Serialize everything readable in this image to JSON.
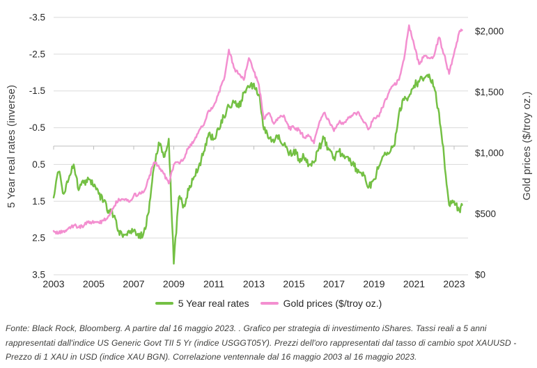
{
  "footer": {
    "text": "Fonte: Black Rock, Bloomberg. A partire dal 16 maggio 2023. . Grafico per strategia di investimento iShares. Tassi reali a 5 anni rappresentati dall'indice US Generic Govt TII 5 Yr (indice USGGT05Y). Prezzi dell'oro rappresentati dal tasso di cambio spot XAUUSD - Prezzo di 1 XAU in USD (indice XAU BGN). Correlazione ventennale dal 16 maggio 2003 al 16 maggio 2023."
  },
  "chart_data": {
    "type": "line",
    "title": "",
    "grid": "horizontal",
    "legend_position": "bottom",
    "colors": {
      "rates_line": "#74C044",
      "gold_line": "#F38FD0",
      "gridline": "#dadada",
      "zero_axis": "#bdbdbd",
      "tick_text": "#262626"
    },
    "left_axis": {
      "title": "5 Year real rates (inverse)",
      "range": [
        -3.5,
        3.5
      ],
      "inverted": true,
      "ticks": [
        -3.5,
        -2.5,
        -1.5,
        -0.5,
        0.5,
        1.5,
        2.5,
        3.5
      ],
      "tick_labels": [
        "-3.5",
        "-2.5",
        "-1.5",
        "-0.5",
        "0.5",
        "1.5",
        "2.5",
        "3.5"
      ]
    },
    "right_axis": {
      "title": "Gold prices ($/troy oz.)",
      "range": [
        0,
        2000
      ],
      "ticks": [
        0,
        500,
        1000,
        1500,
        2000
      ],
      "tick_labels": [
        "$0",
        "$500",
        "$1,000",
        "$1,500",
        "$2,000"
      ]
    },
    "x_axis": {
      "range": [
        2003,
        2023.4
      ],
      "ticks": [
        2003,
        2005,
        2007,
        2009,
        2011,
        2013,
        2015,
        2017,
        2019,
        2021,
        2023
      ],
      "tick_labels": [
        "2003",
        "2005",
        "2007",
        "2009",
        "2011",
        "2013",
        "2015",
        "2017",
        "2019",
        "2021",
        "2023"
      ]
    },
    "x": [
      2003,
      2003.25,
      2003.5,
      2003.75,
      2004,
      2004.25,
      2004.5,
      2004.75,
      2005,
      2005.25,
      2005.5,
      2005.75,
      2006,
      2006.25,
      2006.5,
      2006.75,
      2007,
      2007.25,
      2007.5,
      2007.75,
      2008,
      2008.25,
      2008.5,
      2008.75,
      2009,
      2009.25,
      2009.5,
      2009.75,
      2010,
      2010.25,
      2010.5,
      2010.75,
      2011,
      2011.25,
      2011.5,
      2011.75,
      2012,
      2012.25,
      2012.5,
      2012.75,
      2013,
      2013.25,
      2013.5,
      2013.75,
      2014,
      2014.25,
      2014.5,
      2014.75,
      2015,
      2015.25,
      2015.5,
      2015.75,
      2016,
      2016.25,
      2016.5,
      2016.75,
      2017,
      2017.25,
      2017.5,
      2017.75,
      2018,
      2018.25,
      2018.5,
      2018.75,
      2019,
      2019.25,
      2019.5,
      2019.75,
      2020,
      2020.25,
      2020.5,
      2020.75,
      2021,
      2021.25,
      2021.5,
      2021.75,
      2022,
      2022.25,
      2022.5,
      2022.75,
      2023,
      2023.25,
      2023.4
    ],
    "series": [
      {
        "name": "5 Year real rates",
        "axis": "left",
        "unit": "%",
        "color": "#74C044",
        "values": [
          1.4,
          0.7,
          1.3,
          0.9,
          0.5,
          1.2,
          1.0,
          0.9,
          1.1,
          1.3,
          1.5,
          1.75,
          1.9,
          2.3,
          2.4,
          2.3,
          2.3,
          2.5,
          2.35,
          1.8,
          0.6,
          -0.1,
          0.3,
          -0.2,
          3.2,
          1.4,
          1.6,
          1.2,
          0.85,
          0.55,
          0.15,
          -0.35,
          -0.2,
          -0.45,
          -0.8,
          -1.1,
          -1.2,
          -1.05,
          -1.45,
          -1.6,
          -1.7,
          -1.4,
          -0.45,
          -0.2,
          -0.1,
          -0.3,
          -0.05,
          0.25,
          0.1,
          0.35,
          0.3,
          0.5,
          0.45,
          0.05,
          -0.2,
          0.1,
          0.3,
          0.15,
          0.25,
          0.4,
          0.55,
          0.7,
          0.8,
          1.1,
          0.9,
          0.55,
          0.25,
          0.2,
          0.0,
          -0.9,
          -1.25,
          -1.35,
          -1.65,
          -1.75,
          -1.85,
          -1.95,
          -1.6,
          -0.9,
          0.3,
          1.6,
          1.5,
          1.75,
          1.6
        ]
      },
      {
        "name": "Gold prices ($/troy oz.)",
        "axis": "right",
        "unit": "$/troy oz.",
        "color": "#F38FD0",
        "values": [
          360,
          340,
          360,
          385,
          405,
          390,
          400,
          440,
          425,
          430,
          445,
          485,
          555,
          625,
          620,
          600,
          650,
          665,
          680,
          790,
          920,
          895,
          830,
          750,
          905,
          920,
          955,
          1050,
          1100,
          1180,
          1230,
          1350,
          1390,
          1500,
          1600,
          1850,
          1700,
          1650,
          1600,
          1780,
          1670,
          1560,
          1280,
          1330,
          1240,
          1290,
          1310,
          1200,
          1210,
          1190,
          1130,
          1140,
          1080,
          1240,
          1330,
          1270,
          1180,
          1250,
          1250,
          1290,
          1330,
          1330,
          1250,
          1200,
          1290,
          1300,
          1410,
          1500,
          1560,
          1600,
          1770,
          2050,
          1890,
          1730,
          1800,
          1780,
          1800,
          1950,
          1810,
          1650,
          1820,
          1990,
          2010
        ]
      }
    ],
    "render": {
      "noise_seed": 13,
      "noise_amp_rates": 0.11,
      "noise_amp_gold": 16,
      "line_width": 2.5
    }
  }
}
